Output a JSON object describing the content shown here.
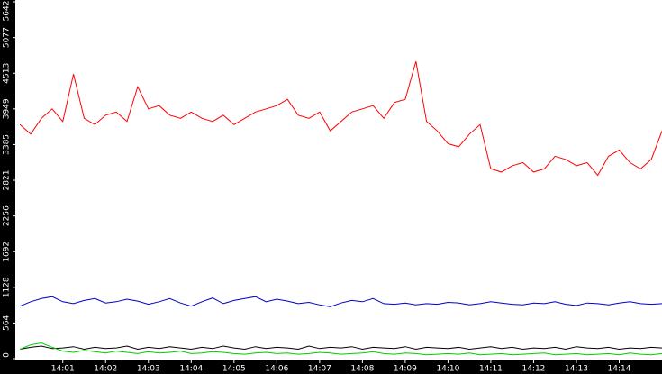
{
  "chart_data": {
    "type": "line",
    "x": [
      0,
      0.25,
      0.5,
      0.75,
      1,
      1.25,
      1.5,
      1.75,
      2,
      2.25,
      2.5,
      2.75,
      3,
      3.25,
      3.5,
      3.75,
      4,
      4.25,
      4.5,
      4.75,
      5,
      5.25,
      5.5,
      5.75,
      6,
      6.25,
      6.5,
      6.75,
      7,
      7.25,
      7.5,
      7.75,
      8,
      8.25,
      8.5,
      8.75,
      9,
      9.25,
      9.5,
      9.75,
      10,
      10.25,
      10.5,
      10.75,
      11,
      11.25,
      11.5,
      11.75,
      12,
      12.25,
      12.5,
      12.75,
      13,
      13.25,
      13.5,
      13.75,
      14,
      14.25,
      14.5,
      14.75,
      15
    ],
    "series": [
      {
        "color": "#ff0000",
        "values": [
          3700,
          3550,
          3800,
          3950,
          3750,
          4500,
          3800,
          3700,
          3850,
          3900,
          3750,
          4300,
          3950,
          4000,
          3850,
          3800,
          3900,
          3800,
          3750,
          3850,
          3700,
          3800,
          3900,
          3950,
          4000,
          4100,
          3850,
          3800,
          3900,
          3600,
          3750,
          3900,
          3950,
          4000,
          3800,
          4050,
          4100,
          4700,
          3750,
          3600,
          3400,
          3350,
          3550,
          3700,
          3000,
          2950,
          3050,
          3100,
          2950,
          3000,
          3200,
          3150,
          3050,
          3100,
          2900,
          3200,
          3300,
          3100,
          3000,
          3150,
          3600
        ]
      },
      {
        "color": "#0000cc",
        "values": [
          830,
          900,
          950,
          980,
          900,
          870,
          920,
          950,
          880,
          900,
          940,
          910,
          860,
          900,
          950,
          880,
          830,
          900,
          960,
          870,
          920,
          950,
          980,
          900,
          940,
          910,
          870,
          890,
          850,
          820,
          880,
          920,
          900,
          950,
          870,
          860,
          880,
          850,
          870,
          860,
          890,
          880,
          850,
          870,
          900,
          880,
          860,
          850,
          880,
          870,
          900,
          860,
          840,
          880,
          870,
          850,
          880,
          900,
          870,
          860,
          870
        ]
      },
      {
        "color": "#000000",
        "values": [
          150,
          180,
          200,
          160,
          170,
          190,
          150,
          180,
          160,
          170,
          200,
          150,
          180,
          160,
          190,
          170,
          150,
          180,
          160,
          200,
          170,
          150,
          190,
          160,
          180,
          170,
          150,
          200,
          160,
          180,
          170,
          190,
          150,
          180,
          170,
          160,
          190,
          150,
          180,
          170,
          160,
          180,
          150,
          170,
          190,
          160,
          180,
          150,
          170,
          160,
          180,
          150,
          190,
          170,
          160,
          180,
          150,
          170,
          160,
          180,
          170
        ]
      },
      {
        "color": "#00cc00",
        "values": [
          150,
          220,
          250,
          180,
          120,
          100,
          130,
          110,
          90,
          120,
          100,
          80,
          110,
          90,
          100,
          120,
          80,
          90,
          110,
          100,
          80,
          70,
          90,
          100,
          80,
          90,
          70,
          80,
          100,
          90,
          70,
          80,
          90,
          110,
          80,
          70,
          90,
          80,
          60,
          70,
          80,
          70,
          90,
          60,
          70,
          80,
          60,
          70,
          80,
          90,
          60,
          70,
          80,
          60,
          70,
          80,
          60,
          90,
          70,
          60,
          80
        ]
      }
    ],
    "xlim": [
      -0.11,
      15
    ],
    "xticks": [
      {
        "value": 1,
        "label": "14:01"
      },
      {
        "value": 2,
        "label": "14:02"
      },
      {
        "value": 3,
        "label": "14:03"
      },
      {
        "value": 4,
        "label": "14:04"
      },
      {
        "value": 5,
        "label": "14:05"
      },
      {
        "value": 6,
        "label": "14:06"
      },
      {
        "value": 7,
        "label": "14:07"
      },
      {
        "value": 8,
        "label": "14:08"
      },
      {
        "value": 9,
        "label": "14:09"
      },
      {
        "value": 10,
        "label": "14:10"
      },
      {
        "value": 11,
        "label": "14:11"
      },
      {
        "value": 12,
        "label": "14:12"
      },
      {
        "value": 13,
        "label": "14:13"
      },
      {
        "value": 14,
        "label": "14:14"
      }
    ],
    "ylim": [
      0,
      5642
    ],
    "yticks": [
      0,
      564,
      1128,
      1692,
      2256,
      2821,
      3385,
      3949,
      4513,
      5077,
      5642
    ]
  }
}
